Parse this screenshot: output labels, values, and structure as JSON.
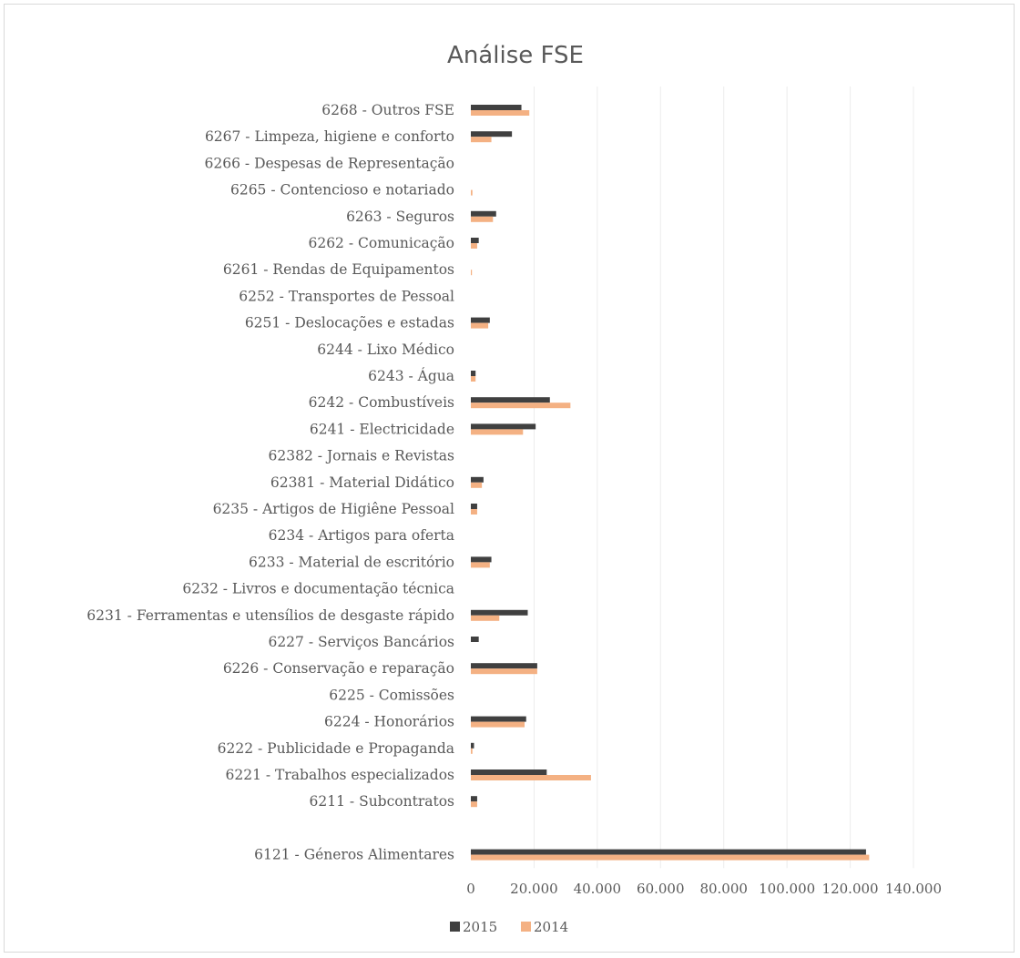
{
  "chart_data": {
    "type": "bar",
    "orientation": "horizontal",
    "title": "Análise FSE",
    "xlabel": "",
    "ylabel": "",
    "xlim": [
      0,
      140000
    ],
    "x_ticks": [
      "0",
      "20.000",
      "40.000",
      "60.000",
      "80.000",
      "100.000",
      "120.000",
      "140.000"
    ],
    "x_tick_values": [
      0,
      20000,
      40000,
      60000,
      80000,
      100000,
      120000,
      140000
    ],
    "grid": "vertical",
    "legend_position": "bottom",
    "categories": [
      "6268 - Outros FSE",
      "6267 - Limpeza, higiene e conforto",
      "6266 - Despesas de Representação",
      "6265 - Contencioso e notariado",
      "6263 - Seguros",
      "6262 - Comunicação",
      "6261 - Rendas de Equipamentos",
      "6252 - Transportes de Pessoal",
      "6251 - Deslocações e estadas",
      "6244 - Lixo Médico",
      "6243 - Água",
      "6242 - Combustíveis",
      "6241 - Electricidade",
      "62382 - Jornais e Revistas",
      "62381 - Material Didático",
      "6235 - Artigos de Higiêne Pessoal",
      "6234 - Artigos para oferta",
      "6233 - Material de escritório",
      "6232 - Livros e documentação técnica",
      "6231 - Ferramentas e utensílios de desgaste rápido",
      "6227 - Serviços Bancários",
      "6226 - Conservação e reparação",
      "6225 - Comissões",
      "6224 - Honorários",
      "6222 - Publicidade e Propaganda",
      "6221 - Trabalhos especializados",
      "6211 - Subcontratos",
      "",
      "6121 - Géneros Alimentares"
    ],
    "series": [
      {
        "name": "2015",
        "color": "#404040",
        "values": [
          16000,
          13000,
          0,
          0,
          8000,
          2500,
          0,
          0,
          6000,
          0,
          1500,
          25000,
          20500,
          0,
          4000,
          2000,
          0,
          6500,
          0,
          18000,
          2500,
          21000,
          0,
          17500,
          1000,
          24000,
          2000,
          null,
          125000
        ]
      },
      {
        "name": "2014",
        "color": "#f4b183",
        "values": [
          18500,
          6500,
          0,
          500,
          7000,
          2000,
          200,
          0,
          5500,
          0,
          1500,
          31500,
          16500,
          0,
          3500,
          2000,
          0,
          6000,
          0,
          9000,
          0,
          21000,
          0,
          17000,
          500,
          38000,
          2000,
          null,
          126000
        ]
      }
    ]
  }
}
